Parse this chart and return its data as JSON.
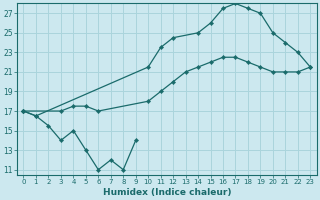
{
  "xlabel": "Humidex (Indice chaleur)",
  "bg_color": "#cce8ef",
  "grid_color": "#aad4dc",
  "line_color": "#1a6b6b",
  "xlim": [
    -0.5,
    23.5
  ],
  "ylim": [
    10.5,
    28.0
  ],
  "xticks": [
    0,
    1,
    2,
    3,
    4,
    5,
    6,
    7,
    8,
    9,
    10,
    11,
    12,
    13,
    14,
    15,
    16,
    17,
    18,
    19,
    20,
    21,
    22,
    23
  ],
  "yticks": [
    11,
    13,
    15,
    17,
    19,
    21,
    23,
    25,
    27
  ],
  "line1_x": [
    0,
    1,
    2,
    3,
    4,
    5,
    6,
    7,
    8,
    9
  ],
  "line1_y": [
    17.0,
    16.5,
    15.5,
    14.0,
    15.0,
    13.0,
    11.0,
    12.0,
    11.0,
    14.0
  ],
  "line2_x": [
    0,
    3,
    4,
    5,
    6,
    10,
    11,
    12,
    13,
    14,
    15,
    16,
    17,
    18,
    19,
    20,
    21,
    22,
    23
  ],
  "line2_y": [
    17.0,
    17.0,
    17.5,
    17.5,
    17.0,
    18.0,
    19.0,
    20.0,
    21.0,
    21.5,
    22.0,
    22.5,
    22.5,
    22.0,
    21.5,
    21.0,
    21.0,
    21.0,
    21.5
  ],
  "line3_x": [
    0,
    1,
    10,
    11,
    12,
    14,
    15,
    16,
    17,
    18,
    19,
    20,
    21,
    22,
    23
  ],
  "line3_y": [
    17.0,
    16.5,
    21.5,
    23.5,
    24.5,
    25.0,
    26.0,
    27.5,
    28.0,
    27.5,
    27.0,
    25.0,
    24.0,
    23.0,
    21.5
  ]
}
